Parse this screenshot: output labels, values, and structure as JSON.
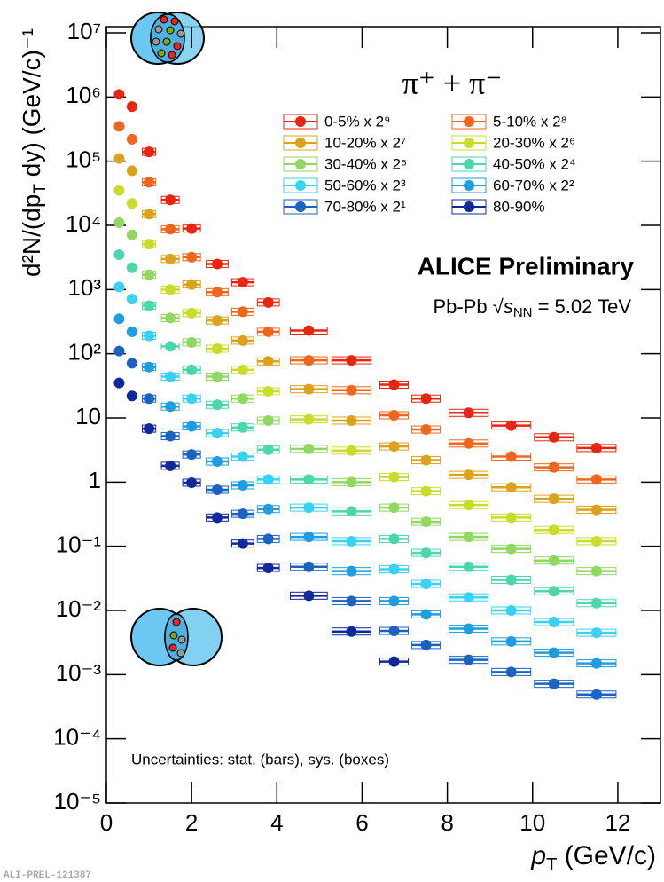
{
  "chart_data": {
    "type": "scatter",
    "log_y": true,
    "grid": false,
    "title": "π⁺ + π⁻",
    "annotations": {
      "experiment": "ALICE Preliminary",
      "system": [
        "Pb-Pb √",
        "s",
        "NN",
        " = 5.02 TeV"
      ],
      "uncertainties": "Uncertainties: stat. (bars), sys. (boxes)",
      "figure_id": "ALI-PREL-121387"
    },
    "x_label": [
      "p",
      "T",
      " (GeV/c)"
    ],
    "y_label": [
      "d²N/(dp",
      "T",
      " dy) (GeV/c)⁻¹"
    ],
    "xlim": [
      0,
      13
    ],
    "xticks": [
      0,
      2,
      4,
      6,
      8,
      10,
      12
    ],
    "ylim": [
      1e-05,
      12500000
    ],
    "yticks": [
      {
        "value": 1e-05,
        "label": "10⁻⁵"
      },
      {
        "value": 0.0001,
        "label": "10⁻⁴"
      },
      {
        "value": 0.001,
        "label": "10⁻³"
      },
      {
        "value": 0.01,
        "label": "10⁻²"
      },
      {
        "value": 0.1,
        "label": "10⁻¹"
      },
      1,
      10,
      {
        "value": 100,
        "label": "10²"
      },
      {
        "value": 1000,
        "label": "10³"
      },
      {
        "value": 10000,
        "label": "10⁴"
      },
      {
        "value": 100000,
        "label": "10⁵"
      },
      {
        "value": 1000000,
        "label": "10⁶"
      },
      {
        "value": 10000000,
        "label": "10⁷"
      }
    ],
    "x": [
      0.3,
      0.6,
      1.0,
      1.5,
      2.0,
      2.6,
      3.2,
      3.8,
      4.75,
      5.75,
      6.75,
      7.5,
      8.5,
      9.5,
      10.5,
      11.5
    ],
    "series": [
      {
        "name": "0-5% x 2⁹",
        "color": "#e8250f",
        "values": [
          1100000,
          710000,
          140000,
          25000,
          8900,
          2500,
          1300,
          630,
          230,
          79,
          33,
          20,
          12,
          7.6,
          5.0,
          3.4
        ]
      },
      {
        "name": "5-10% x 2⁸",
        "color": "#f0661e",
        "values": [
          350000,
          220000,
          47000,
          8700,
          3200,
          910,
          450,
          220,
          79,
          27,
          11,
          6.6,
          4.0,
          2.5,
          1.7,
          1.1
        ]
      },
      {
        "name": "10-20% x 2⁷",
        "color": "#dba21e",
        "values": [
          110000,
          71000,
          15000,
          3000,
          1200,
          330,
          160,
          76,
          28,
          9.1,
          3.6,
          2.2,
          1.3,
          0.83,
          0.55,
          0.37
        ]
      },
      {
        "name": "20-30% x 2⁶",
        "color": "#c9dc2a",
        "values": [
          35000,
          22000,
          5100,
          1000,
          430,
          120,
          56,
          26,
          9.5,
          3.1,
          1.2,
          0.72,
          0.44,
          0.28,
          0.18,
          0.12
        ]
      },
      {
        "name": "30-40% x 2⁵",
        "color": "#90d862",
        "values": [
          11000,
          7100,
          1700,
          360,
          150,
          44,
          20,
          9.1,
          3.3,
          1.0,
          0.4,
          0.24,
          0.14,
          0.091,
          0.06,
          0.041
        ]
      },
      {
        "name": "40-50% x 2⁴",
        "color": "#4cd6ac",
        "values": [
          3500,
          2200,
          560,
          130,
          56,
          16,
          7.1,
          3.2,
          1.1,
          0.35,
          0.13,
          0.079,
          0.048,
          0.03,
          0.02,
          0.013
        ]
      },
      {
        "name": "50-60% x 2³",
        "color": "#3ad2f4",
        "values": [
          1100,
          710,
          190,
          44,
          20,
          5.8,
          2.5,
          1.1,
          0.4,
          0.12,
          0.044,
          0.026,
          0.016,
          0.01,
          0.0066,
          0.0045
        ]
      },
      {
        "name": "60-70% x 2²",
        "color": "#1e9ee0",
        "values": [
          350,
          220,
          62,
          15,
          7.4,
          2.1,
          0.89,
          0.38,
          0.14,
          0.041,
          0.014,
          0.0087,
          0.0052,
          0.0033,
          0.0022,
          0.0015
        ]
      },
      {
        "name": "70-80% x 2¹",
        "color": "#1c62c0",
        "values": [
          110,
          71,
          20,
          5.2,
          2.7,
          0.76,
          0.32,
          0.13,
          0.048,
          0.014,
          0.0048,
          0.0029,
          0.0017,
          0.0011,
          0.00072,
          0.00049
        ]
      },
      {
        "name": "80-90%",
        "color": "#10289a",
        "values": [
          35,
          22,
          6.8,
          1.8,
          0.98,
          0.28,
          0.11,
          0.046,
          0.017,
          0.0047,
          0.0016,
          null,
          null,
          null,
          null,
          null
        ]
      }
    ]
  }
}
